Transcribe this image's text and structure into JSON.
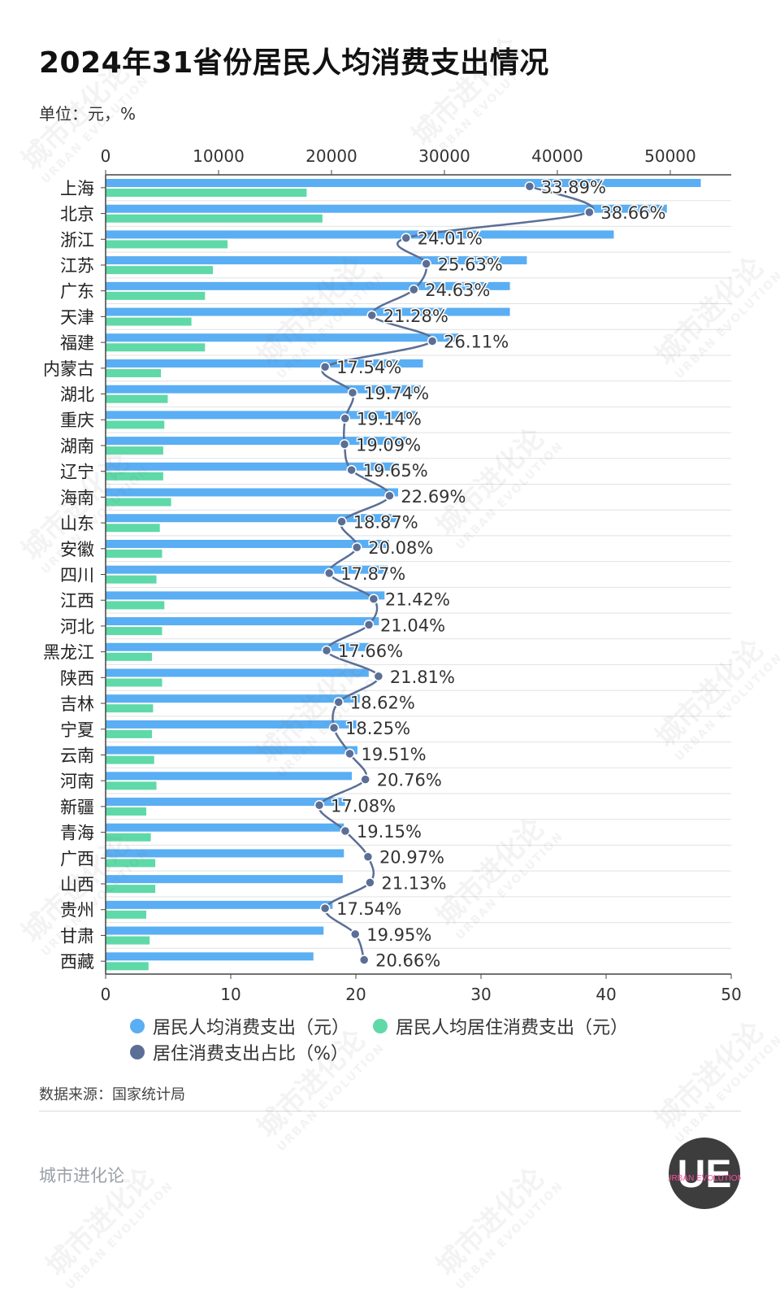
{
  "header": {
    "title": "2024年31省份居民人均消费支出情况",
    "unit": "单位：元，%"
  },
  "legend": {
    "items": [
      {
        "label": "居民人均消费支出（元）",
        "color": "#5aaef3"
      },
      {
        "label": "居民人均居住消费支出（元）",
        "color": "#5ed9a7"
      },
      {
        "label": "居住消费支出占比（%）",
        "color": "#5b6f96"
      }
    ]
  },
  "footer": {
    "source": "数据来源：国家统计局",
    "brand": "城市进化论",
    "logo_letters": "UE",
    "logo_text": "URBAN EVOLUTION"
  },
  "watermark": {
    "text": "城市进化论",
    "sub": "URBAN EVOLUTION"
  },
  "chart_data": {
    "type": "bar",
    "orientation": "horizontal",
    "categories": [
      "上海",
      "北京",
      "浙江",
      "江苏",
      "广东",
      "天津",
      "福建",
      "内蒙古",
      "湖北",
      "重庆",
      "湖南",
      "辽宁",
      "海南",
      "山东",
      "安徽",
      "四川",
      "江西",
      "河北",
      "黑龙江",
      "陕西",
      "吉林",
      "宁夏",
      "云南",
      "河南",
      "新疆",
      "青海",
      "广西",
      "山西",
      "贵州",
      "甘肃",
      "西藏"
    ],
    "series": [
      {
        "name": "居民人均消费支出（元）",
        "type": "bar",
        "axis": "top",
        "color": "#5aaef3",
        "values": [
          52700,
          49700,
          45000,
          37300,
          35800,
          35800,
          31300,
          28100,
          27900,
          27500,
          26700,
          26000,
          25900,
          25800,
          25100,
          25000,
          24700,
          24200,
          23400,
          23300,
          22500,
          22200,
          22300,
          21800,
          21200,
          21100,
          21100,
          21000,
          20100,
          19300,
          18400
        ]
      },
      {
        "name": "居民人均居住消费支出（元）",
        "type": "bar",
        "axis": "top",
        "color": "#5ed9a7",
        "values": [
          17800,
          19200,
          10800,
          9500,
          8800,
          7600,
          8800,
          4900,
          5500,
          5200,
          5100,
          5100,
          5800,
          4800,
          5000,
          4500,
          5200,
          5000,
          4100,
          5000,
          4200,
          4100,
          4300,
          4500,
          3600,
          4000,
          4400,
          4400,
          3600,
          3900,
          3800
        ]
      },
      {
        "name": "居住消费支出占比（%）",
        "type": "line",
        "axis": "bottom",
        "color": "#5b6f96",
        "values": [
          33.89,
          38.66,
          24.01,
          25.63,
          24.63,
          21.28,
          26.11,
          17.54,
          19.74,
          19.14,
          19.09,
          19.65,
          22.69,
          18.87,
          20.08,
          17.87,
          21.42,
          21.04,
          17.66,
          21.81,
          18.62,
          18.25,
          19.51,
          20.76,
          17.08,
          19.15,
          20.97,
          21.13,
          17.54,
          19.95,
          20.66
        ],
        "labels": [
          "33.89%",
          "38.66%",
          "24.01%",
          "25.63%",
          "24.63%",
          "21.28%",
          "26.11%",
          "17.54%",
          "19.74%",
          "19.14%",
          "19.09%",
          "19.65%",
          "22.69%",
          "18.87%",
          "20.08%",
          "17.87%",
          "21.42%",
          "21.04%",
          "17.66%",
          "21.81%",
          "18.62%",
          "18.25%",
          "19.51%",
          "20.76%",
          "17.08%",
          "19.15%",
          "20.97%",
          "21.13%",
          "17.54%",
          "19.95%",
          "20.66%"
        ]
      }
    ],
    "top_axis": {
      "range": [
        0,
        55400
      ],
      "ticks": [
        0,
        10000,
        20000,
        30000,
        40000,
        50000
      ],
      "tick_labels": [
        "0",
        "10000",
        "20000",
        "30000",
        "40000",
        "50000"
      ]
    },
    "bottom_axis": {
      "range": [
        0,
        50
      ],
      "ticks": [
        0,
        10,
        20,
        30,
        40,
        50
      ],
      "tick_labels": [
        "0",
        "10",
        "20",
        "30",
        "40",
        "50"
      ]
    },
    "grid": true,
    "legend_position": "bottom"
  }
}
